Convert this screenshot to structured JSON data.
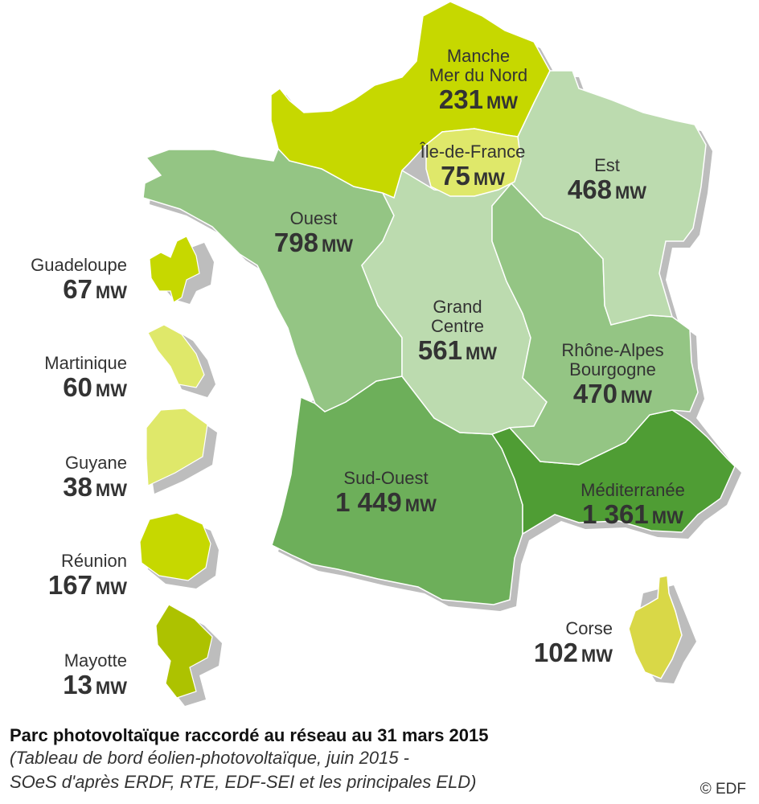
{
  "unit": "MW",
  "colors": {
    "manche": "#c6d800",
    "idf": "#dfe86a",
    "est": "#bcdbaf",
    "ouest": "#94c584",
    "centre": "#bcdbaf",
    "rhone": "#94c584",
    "sudouest": "#6daf5a",
    "med": "#4f9d34",
    "corse": "#d9d847",
    "guadeloupe": "#c6d800",
    "martinique": "#dfe86a",
    "guyane": "#dfe86a",
    "reunion": "#c6d800",
    "mayotte": "#adc200",
    "shadow": "#bdbdbd"
  },
  "regions": [
    {
      "id": "manche",
      "name": "Manche\nMer du Nord",
      "value": "231"
    },
    {
      "id": "idf",
      "name": "Île-de-France",
      "value": "75"
    },
    {
      "id": "est",
      "name": "Est",
      "value": "468"
    },
    {
      "id": "ouest",
      "name": "Ouest",
      "value": "798"
    },
    {
      "id": "centre",
      "name": "Grand\nCentre",
      "value": "561"
    },
    {
      "id": "rhone",
      "name": "Rhône-Alpes\nBourgogne",
      "value": "470"
    },
    {
      "id": "sudouest",
      "name": "Sud-Ouest",
      "value": "1 449"
    },
    {
      "id": "med",
      "name": "Méditerranée",
      "value": "1 361"
    },
    {
      "id": "corse",
      "name": "Corse",
      "value": "102"
    }
  ],
  "overseas": [
    {
      "id": "guadeloupe",
      "name": "Guadeloupe",
      "value": "67"
    },
    {
      "id": "martinique",
      "name": "Martinique",
      "value": "60"
    },
    {
      "id": "guyane",
      "name": "Guyane",
      "value": "38"
    },
    {
      "id": "reunion",
      "name": "Réunion",
      "value": "167"
    },
    {
      "id": "mayotte",
      "name": "Mayotte",
      "value": "13"
    }
  ],
  "caption": {
    "title": "Parc photovoltaïque raccordé au réseau au 31 mars 2015",
    "source_line1": "(Tableau de bord éolien-photovoltaïque, juin 2015 -",
    "source_line2": "SOeS d'après ERDF, RTE, EDF-SEI et les principales ELD)"
  },
  "copyright": "© EDF"
}
